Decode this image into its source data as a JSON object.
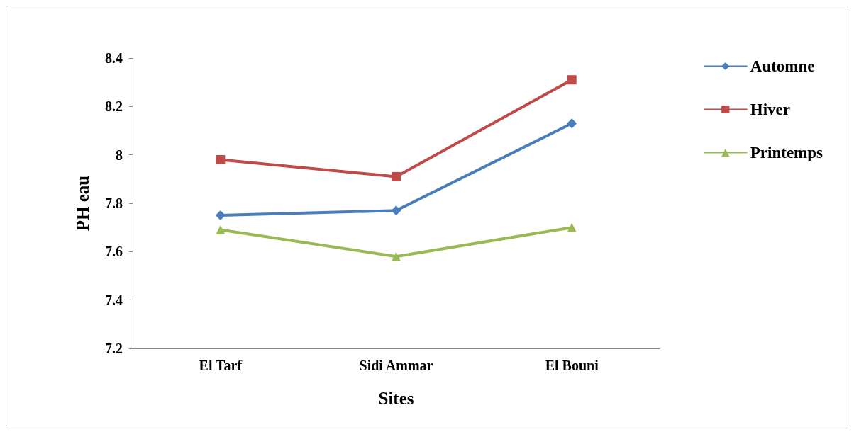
{
  "chart_data": {
    "type": "line",
    "xlabel": "Sites",
    "ylabel": "PH eau",
    "categories": [
      "El Tarf",
      "Sidi Ammar",
      "El Bouni"
    ],
    "series": [
      {
        "name": "Automne",
        "color": "#4a7ebb",
        "marker": "diamond",
        "values": [
          7.75,
          7.77,
          8.13
        ]
      },
      {
        "name": "Hiver",
        "color": "#be4b48",
        "marker": "square",
        "values": [
          7.98,
          7.91,
          8.31
        ]
      },
      {
        "name": "Printemps",
        "color": "#98b954",
        "marker": "triangle",
        "values": [
          7.69,
          7.58,
          7.7
        ]
      }
    ],
    "ylim": [
      7.2,
      8.4
    ],
    "yticks": [
      7.2,
      7.4,
      7.6,
      7.8,
      8,
      8.2,
      8.4
    ],
    "grid": false,
    "legend": "top right"
  }
}
